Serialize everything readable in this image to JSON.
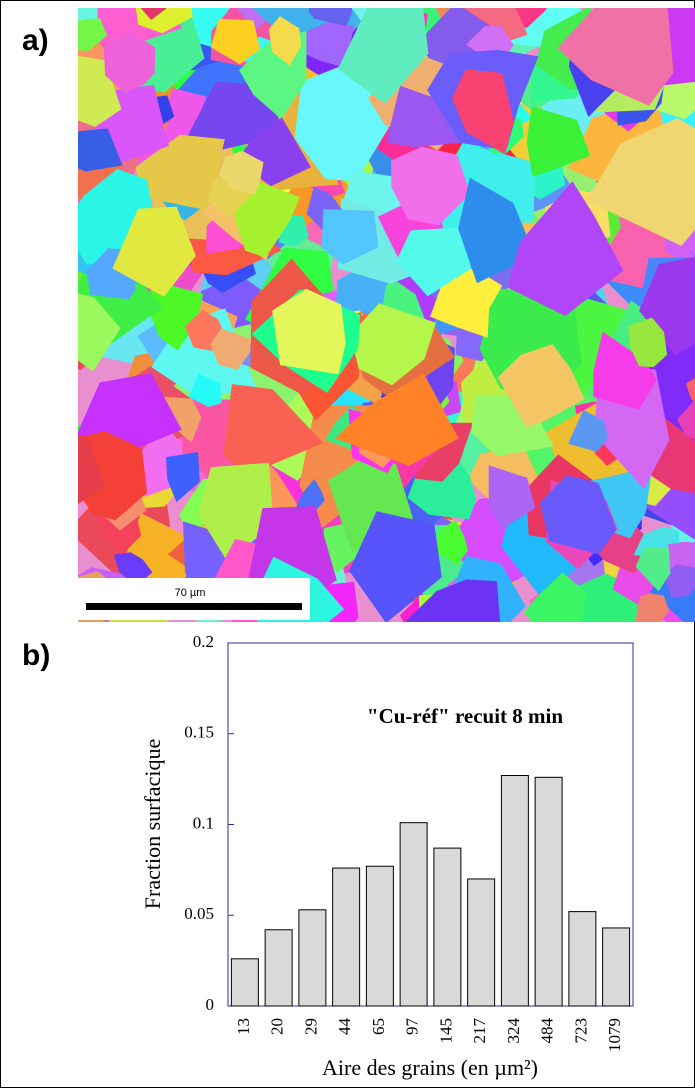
{
  "panel_a": {
    "label": "a)",
    "scale_bar": "70 µm"
  },
  "chart_data": {
    "type": "bar",
    "panel_label": "b)",
    "annotation": "\"Cu-réf\" recuit 8 min",
    "x_label": "Aire des grains (en µm²)",
    "y_label": "Fraction surfacique",
    "categories": [
      "13",
      "20",
      "29",
      "44",
      "65",
      "97",
      "145",
      "217",
      "324",
      "484",
      "723",
      "1079"
    ],
    "values": [
      0.026,
      0.042,
      0.053,
      0.076,
      0.077,
      0.101,
      0.087,
      0.07,
      0.127,
      0.126,
      0.052,
      0.043
    ],
    "color": "#d9d9d9",
    "ylim": [
      0,
      0.2
    ],
    "yticks": [
      0,
      0.05,
      0.1,
      0.15,
      0.2
    ]
  }
}
